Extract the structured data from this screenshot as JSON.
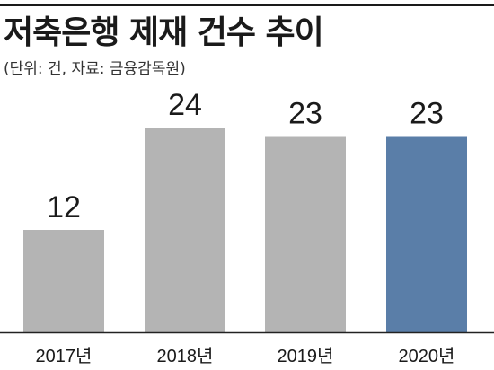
{
  "header": {
    "title": "저축은행 제재 건수 추이",
    "subtitle": "(단위: 건, 자료: 금융감독원)"
  },
  "chart_data": {
    "type": "bar",
    "title": "저축은행 제재 건수 추이",
    "subtitle": "(단위: 건, 자료: 금융감독원)",
    "categories": [
      "2017년",
      "2018년",
      "2019년",
      "2020년"
    ],
    "values": [
      12,
      24,
      23,
      23
    ],
    "value_labels": [
      "12",
      "24",
      "23",
      "23"
    ],
    "xlabel": "",
    "ylabel": "",
    "ylim": [
      0,
      24
    ],
    "grid": false,
    "legend": "none",
    "colors": {
      "default_bar": "#b4b4b4",
      "highlight_bar": "#5a7ea8",
      "baseline": "#222222"
    },
    "highlight_index": 3
  }
}
